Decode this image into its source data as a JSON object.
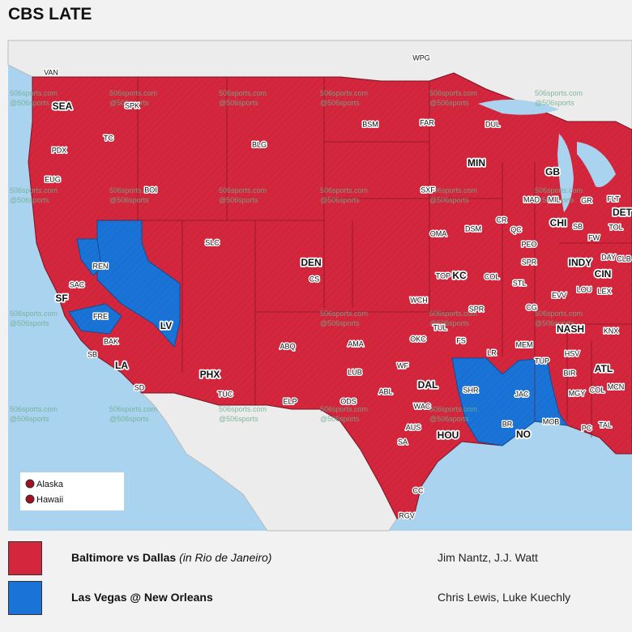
{
  "title": "CBS LATE",
  "games": [
    {
      "matchup": "Baltimore vs Dallas",
      "note": "(in Rio de Janeiro)",
      "announcers": "Jim Nantz, J.J. Watt",
      "color": "#d4263d"
    },
    {
      "matchup": "Las Vegas @ New Orleans",
      "announcers": "Chris Lewis, Luke Kuechly",
      "color": "#1a74d8"
    }
  ],
  "inset_legend": [
    "Alaska",
    "Hawaii"
  ],
  "watermark": [
    "506sports.com",
    "@506sports"
  ],
  "cities": [
    "WPG",
    "VAN",
    "SEA",
    "SPK",
    "TC",
    "PDX",
    "BLG",
    "BSM",
    "FAR",
    "DUL",
    "EUG",
    "BOI",
    "MIN",
    "GB",
    "SXF",
    "MAD",
    "MIL",
    "GR",
    "FLT",
    "DET",
    "REN",
    "SLC",
    "OMA",
    "DSM",
    "CR",
    "QC",
    "CHI",
    "SB",
    "TOL",
    "FW",
    "PEO",
    "DEN",
    "CS",
    "SPR",
    "INDY",
    "DAY",
    "CLB",
    "SAC",
    "TOP",
    "KC",
    "COL",
    "STL",
    "CIN",
    "SF",
    "WCH",
    "EVV",
    "LOU",
    "LEX",
    "FRE",
    "SPR",
    "CG",
    "LV",
    "BAK",
    "TUL",
    "NASH",
    "KNX",
    "OKC",
    "FS",
    "MEM",
    "ABQ",
    "AMA",
    "SB",
    "LA",
    "LR",
    "TUP",
    "HSV",
    "WF",
    "LUB",
    "PHX",
    "BIR",
    "ATL",
    "DAL",
    "SHR",
    "JAC",
    "SD",
    "ABL",
    "MGY",
    "COL",
    "MCN",
    "TUC",
    "ODS",
    "ELP",
    "WAC",
    "MOB",
    "AUS",
    "BR",
    "NO",
    "HOU",
    "PC",
    "TAL",
    "SA",
    "CC",
    "RGV"
  ]
}
